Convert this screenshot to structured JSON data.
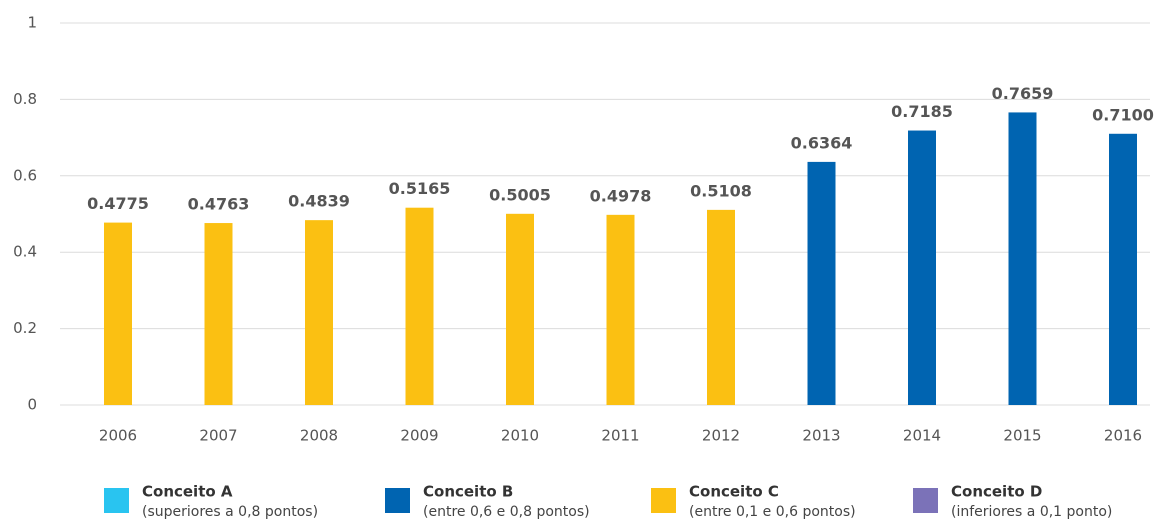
{
  "chart_data": {
    "type": "bar",
    "categories": [
      "2006",
      "2007",
      "2008",
      "2009",
      "2010",
      "2011",
      "2012",
      "2013",
      "2014",
      "2015",
      "2016"
    ],
    "values": [
      0.4775,
      0.4763,
      0.4839,
      0.5165,
      0.5005,
      0.4978,
      0.5108,
      0.6364,
      0.7185,
      0.7659,
      0.71
    ],
    "value_labels": [
      "0.4775",
      "0.4763",
      "0.4839",
      "0.5165",
      "0.5005",
      "0.4978",
      "0.5108",
      "0.6364",
      "0.7185",
      "0.7659",
      "0.7100"
    ],
    "colors": [
      "#fbc012",
      "#fbc012",
      "#fbc012",
      "#fbc012",
      "#fbc012",
      "#fbc012",
      "#fbc012",
      "#0064b1",
      "#0064b1",
      "#0064b1",
      "#0064b1"
    ],
    "ylim": [
      0,
      1
    ],
    "yticks": [
      0,
      0.2,
      0.4,
      0.6,
      0.8,
      1
    ],
    "grid": true,
    "legend": [
      {
        "name": "Conceito A",
        "description": "(superiores a 0,8 pontos)",
        "color": "#29c4f0"
      },
      {
        "name": "Conceito B",
        "description": "(entre 0,6 e 0,8 pontos)",
        "color": "#0064b1"
      },
      {
        "name": "Conceito C",
        "description": "(entre 0,1 e 0,6 pontos)",
        "color": "#fbc012"
      },
      {
        "name": "Conceito D",
        "description": "(inferiores a 0,1 ponto)",
        "color": "#7b72b8"
      }
    ]
  }
}
